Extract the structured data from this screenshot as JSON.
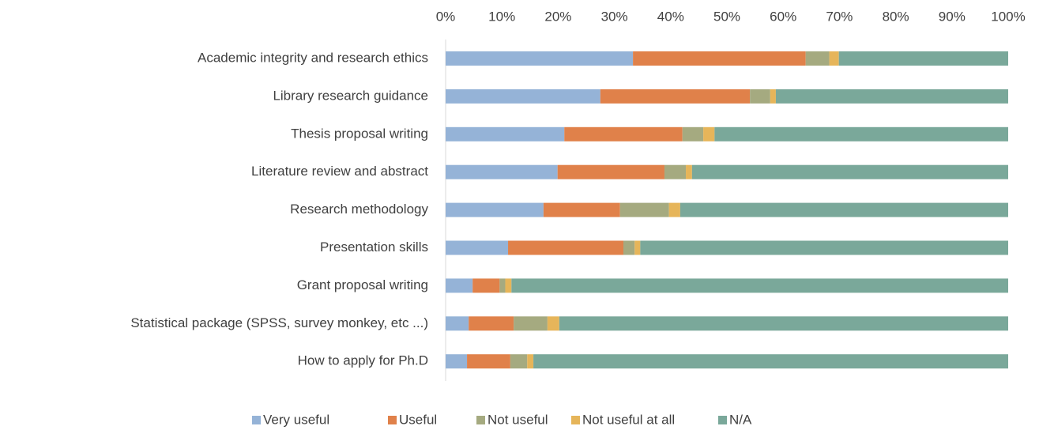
{
  "chart_data": {
    "type": "stacked_barh",
    "categories": [
      "Academic integrity and research ethics",
      "Library research guidance",
      "Thesis proposal writing",
      "Literature review and abstract",
      "Research methodology",
      "Presentation skills",
      "Grant proposal writing",
      "Statistical package (SPSS, survey monkey, etc ...)",
      "How to apply for Ph.D"
    ],
    "series": [
      {
        "name": "Very useful",
        "color": "#95b3d7",
        "values": [
          33.3,
          27.5,
          21.1,
          19.9,
          17.4,
          11.1,
          4.8,
          4.1,
          3.8
        ]
      },
      {
        "name": "Useful",
        "color": "#e0814a",
        "values": [
          30.7,
          26.6,
          21.0,
          19.0,
          13.6,
          20.5,
          4.8,
          8.0,
          7.7
        ]
      },
      {
        "name": "Not useful",
        "color": "#a5aa80",
        "values": [
          4.2,
          3.6,
          3.7,
          3.8,
          8.7,
          2.0,
          1.0,
          6.0,
          3.0
        ]
      },
      {
        "name": "Not useful at all",
        "color": "#e6b55a",
        "values": [
          1.7,
          1.0,
          2.0,
          1.1,
          2.0,
          1.0,
          1.1,
          2.1,
          1.1
        ]
      },
      {
        "name": "N/A",
        "color": "#7aa89a",
        "values": [
          30.1,
          41.3,
          52.2,
          56.2,
          58.3,
          65.4,
          88.3,
          79.8,
          84.4
        ]
      }
    ],
    "xlim": [
      0,
      100
    ],
    "xticks": [
      {
        "value": 0,
        "label": "0%"
      },
      {
        "value": 10,
        "label": "10%"
      },
      {
        "value": 20,
        "label": "20%"
      },
      {
        "value": 30,
        "label": "30%"
      },
      {
        "value": 40,
        "label": "40%"
      },
      {
        "value": 50,
        "label": "50%"
      },
      {
        "value": 60,
        "label": "60%"
      },
      {
        "value": 70,
        "label": "70%"
      },
      {
        "value": 80,
        "label": "80%"
      },
      {
        "value": 90,
        "label": "90%"
      },
      {
        "value": 100,
        "label": "100%"
      }
    ],
    "legend": "bottom"
  }
}
